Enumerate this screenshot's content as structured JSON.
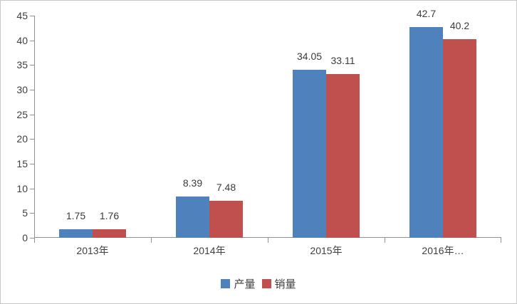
{
  "chart_data": {
    "type": "bar",
    "title": "",
    "categories": [
      "2013年",
      "2014年",
      "2015年",
      "2016年…"
    ],
    "series": [
      {
        "name": "产量",
        "color": "#4F81BD",
        "values": [
          1.75,
          8.39,
          34.05,
          42.7
        ]
      },
      {
        "name": "销量",
        "color": "#C0504D",
        "values": [
          1.76,
          7.48,
          33.11,
          40.2
        ]
      }
    ],
    "data_labels": [
      [
        "1.75",
        "8.39",
        "34.05",
        "42.7"
      ],
      [
        "1.76",
        "7.48",
        "33.11",
        "40.2"
      ]
    ],
    "ylim": [
      0,
      45
    ],
    "y_ticks": [
      0,
      5,
      10,
      15,
      20,
      25,
      30,
      35,
      40,
      45
    ],
    "grid": false,
    "legend_position": "bottom",
    "colors": {
      "axis": "#919191",
      "text": "#3F3F3F",
      "frame_border": "#C8C8C8",
      "background": "#FFFFFF"
    }
  }
}
